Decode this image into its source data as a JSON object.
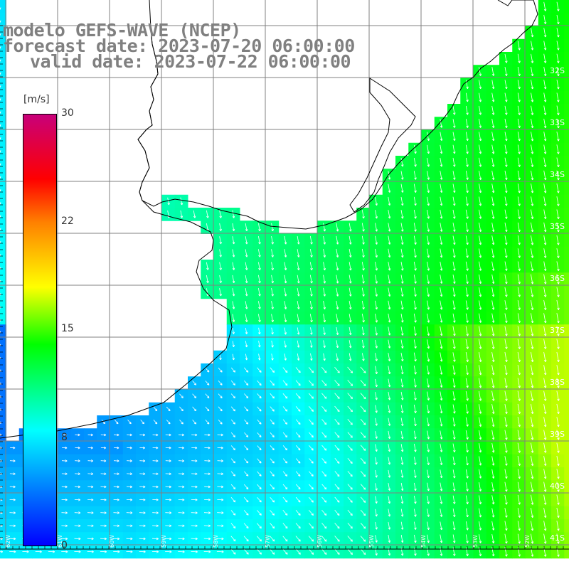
{
  "title": {
    "line1": "modelo GEFS-WAVE (NCEP)",
    "line2": "forecast date: 2023-07-20 06:00:00",
    "line3": "valid date: 2023-07-22 06:00:00"
  },
  "colorbar": {
    "unit": "[m/s]",
    "ticks": [
      {
        "label": "30",
        "value": 30
      },
      {
        "label": "22",
        "value": 22
      },
      {
        "label": "15",
        "value": 15
      },
      {
        "label": "8",
        "value": 8
      },
      {
        "label": "0",
        "value": 0
      }
    ],
    "colors": [
      "#0000ff",
      "#00ffff",
      "#00ff00",
      "#ffff00",
      "#ff8000",
      "#ff0000",
      "#c8007a"
    ]
  },
  "map": {
    "lat_labels": [
      "32S",
      "33S",
      "34S",
      "35S",
      "36S",
      "37S",
      "38S",
      "39S",
      "40S",
      "41S"
    ],
    "lon_labels": [
      "62W",
      "61W",
      "60W",
      "59W",
      "58W",
      "57W",
      "56W",
      "55W",
      "54W",
      "53W",
      "52W"
    ],
    "land_color": "#ffffff",
    "grid_color": "#808080",
    "coast_color": "#000000",
    "arrow_color": "#ffffff"
  }
}
